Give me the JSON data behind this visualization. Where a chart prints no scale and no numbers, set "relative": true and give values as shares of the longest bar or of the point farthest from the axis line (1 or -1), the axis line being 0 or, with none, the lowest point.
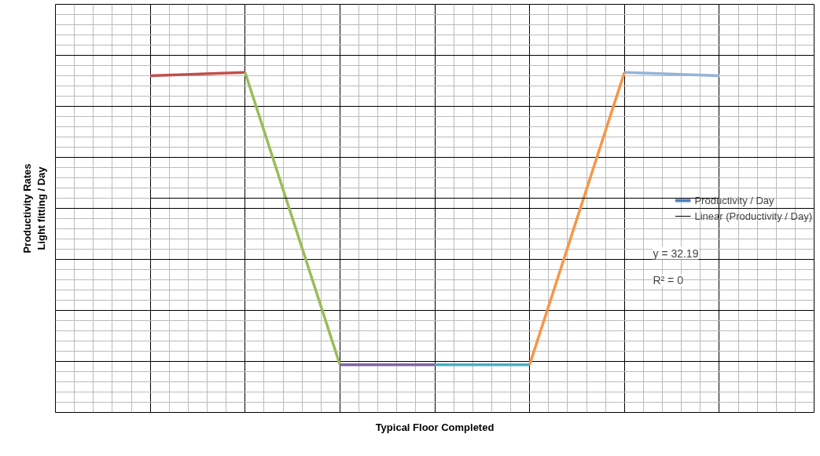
{
  "chart_data": {
    "type": "line",
    "relative": true,
    "xlabel": "Typical Floor Completed",
    "ylabel": "Productivity Rates\nLight fitting / Day",
    "categories": [
      null,
      null,
      null,
      null,
      null,
      null,
      null,
      null,
      null
    ],
    "series": [
      {
        "name": "Productivity / Day",
        "color": "#4f81bd",
        "values": [
          null,
          null,
          null,
          null,
          null,
          null,
          null,
          null,
          null
        ]
      },
      {
        "color": "#c0504d",
        "values": [
          null,
          0.99,
          1,
          null,
          null,
          null,
          null,
          null,
          null
        ]
      },
      {
        "color": "#9bbb59",
        "values": [
          null,
          null,
          1,
          0.14,
          null,
          null,
          null,
          null,
          null
        ]
      },
      {
        "color": "#8064a2",
        "values": [
          null,
          null,
          null,
          0.14,
          0.14,
          null,
          null,
          null,
          null
        ]
      },
      {
        "color": "#4bacc6",
        "values": [
          null,
          null,
          null,
          null,
          0.14,
          0.14,
          null,
          null,
          null
        ]
      },
      {
        "color": "#f79646",
        "values": [
          null,
          null,
          null,
          null,
          null,
          0.14,
          1,
          null,
          null
        ]
      },
      {
        "color": "#95b3d7",
        "values": [
          null,
          null,
          null,
          null,
          null,
          null,
          1,
          0.99,
          null
        ]
      },
      {
        "name": "Linear (Productivity / Day)",
        "color": "#000000",
        "values": [
          null,
          0.63,
          0.63,
          0.63,
          0.63,
          0.63,
          0.63,
          0.63,
          null
        ]
      }
    ],
    "annotations": [
      "y = 32.19",
      "R² = 0"
    ],
    "grid": true,
    "legend": "right"
  }
}
